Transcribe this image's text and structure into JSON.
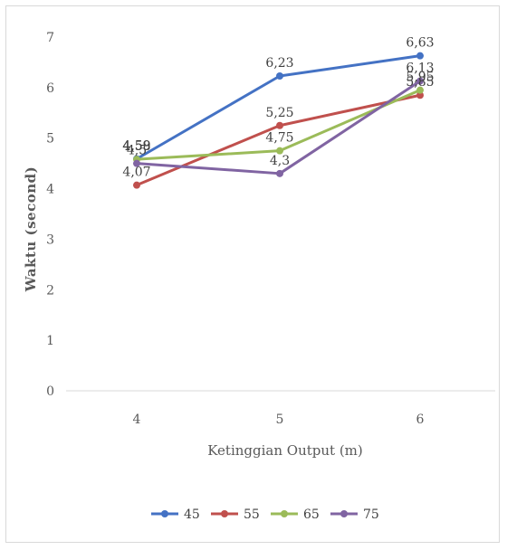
{
  "chart_data": {
    "type": "line",
    "title": "",
    "xlabel": "Ketinggian Output (m)",
    "ylabel": "Waktu (second)",
    "categories": [
      "4",
      "5",
      "6"
    ],
    "ylim": [
      0,
      7
    ],
    "yticks": [
      "0",
      "1",
      "2",
      "3",
      "4",
      "5",
      "6",
      "7"
    ],
    "grid": false,
    "legend_position": "bottom",
    "series": [
      {
        "name": "45",
        "color": "#4472C4",
        "values": [
          4.59,
          6.23,
          6.63
        ],
        "labels": [
          "4,59",
          "6,23",
          "6,63"
        ]
      },
      {
        "name": "55",
        "color": "#C0504D",
        "values": [
          4.07,
          5.25,
          5.85
        ],
        "labels": [
          "4,07",
          "5,25",
          "5,85"
        ]
      },
      {
        "name": "65",
        "color": "#9BBB59",
        "values": [
          4.58,
          4.75,
          5.95
        ],
        "labels": [
          "4,58",
          "4,75",
          "5,95"
        ]
      },
      {
        "name": "75",
        "color": "#8064A2",
        "values": [
          4.5,
          4.3,
          6.13
        ],
        "labels": [
          "4,5",
          "4,3",
          "6,13"
        ]
      }
    ]
  }
}
